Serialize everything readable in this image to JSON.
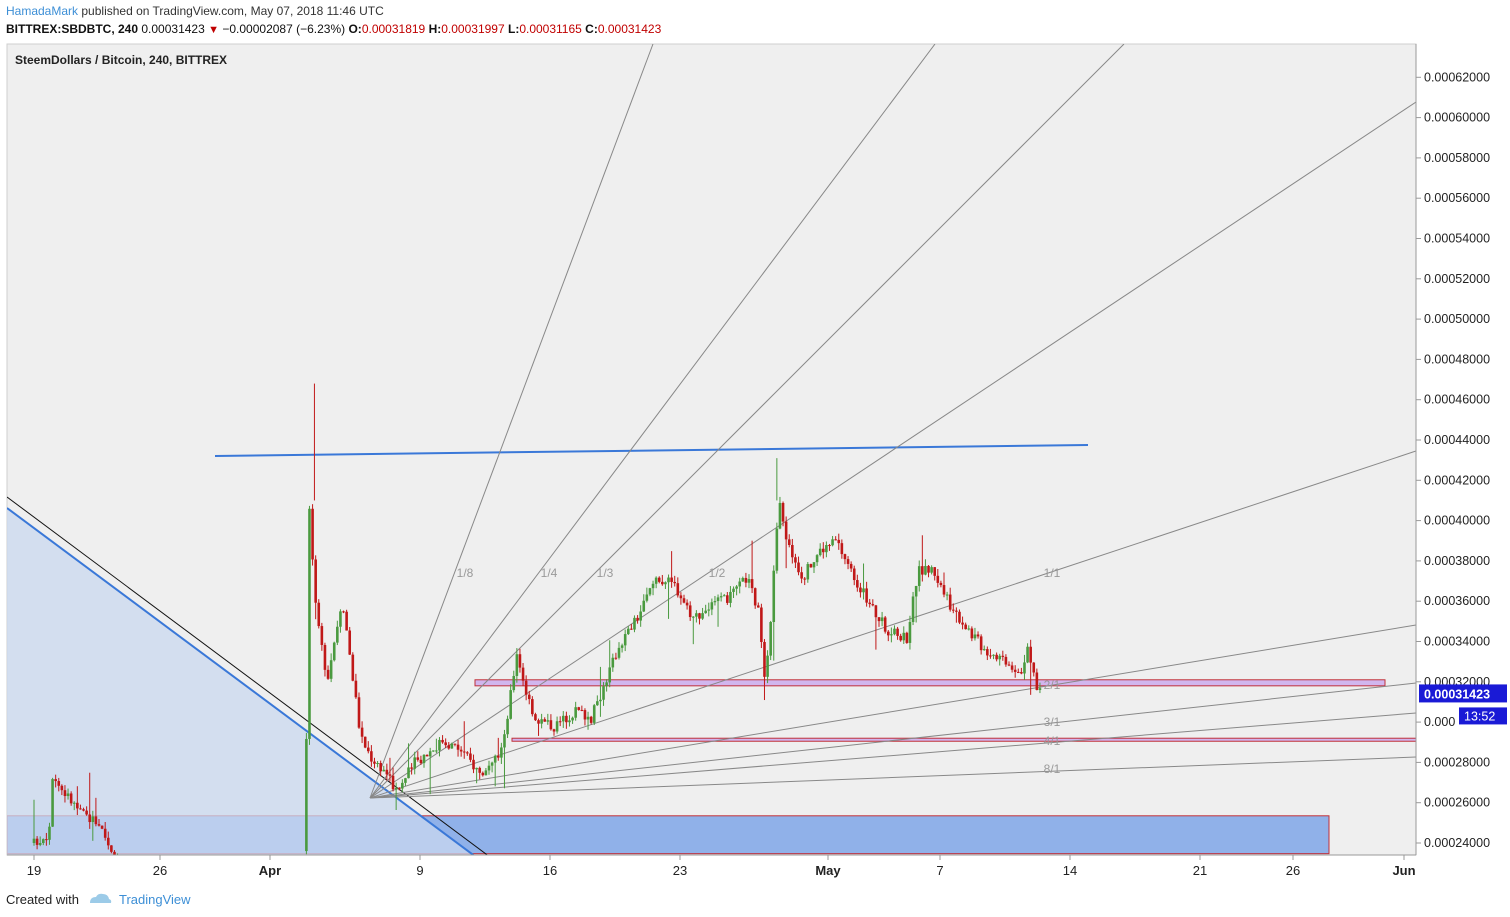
{
  "header": {
    "author": "HamadaMark",
    "published_text": "published on TradingView.com, May 07, 2018 11:46 UTC",
    "symbol": "BITTREX:SBDBTC, 240",
    "last": "0.00031423",
    "change": "−0.00002087 (−6.23%)",
    "o_label": "O:",
    "o": "0.00031819",
    "h_label": "H:",
    "h": "0.00031997",
    "l_label": "L:",
    "l": "0.00031165",
    "c_label": "C:",
    "c": "0.00031423"
  },
  "chart_title": "SteemDollars / Bitcoin, 240, BITTREX",
  "footer": {
    "created_with": "Created with",
    "brand": "TradingView"
  },
  "colors": {
    "up": "#4a9a3f",
    "down": "#c01818",
    "fan": "#888888",
    "trend": "#3a78d8",
    "zone": "#7fa6e8",
    "price_tag": "#1a1ad6"
  },
  "chart_data": {
    "type": "candlestick",
    "title": "SteemDollars / Bitcoin, 240, BITTREX",
    "x_ticks": [
      "19",
      "26",
      "Apr",
      "9",
      "16",
      "23",
      "May",
      "7",
      "14",
      "21",
      "26",
      "Jun"
    ],
    "y_ticks": [
      "0.00024000",
      "0.00026000",
      "0.00028000",
      "0.00030000",
      "0.00032000",
      "0.00034000",
      "0.00036000",
      "0.00038000",
      "0.00040000",
      "0.00042000",
      "0.00044000",
      "0.00046000",
      "0.00048000",
      "0.00050000",
      "0.00052000",
      "0.00054000",
      "0.00056000",
      "0.00058000",
      "0.00060000",
      "0.00062000"
    ],
    "ylim": [
      0.0002347,
      0.00063
    ],
    "last_price": "0.00031423",
    "countdown": "13:52",
    "partial_tick_label": "0.000",
    "gann_fan_labels": [
      "1/8",
      "1/4",
      "1/3",
      "1/2",
      "1/1",
      "2/1",
      "3/1",
      "4/1",
      "8/1"
    ],
    "highlight_zones": [
      [
        0.000318,
        0.000321
      ],
      [
        0.0002905,
        0.000292
      ]
    ],
    "demand_zone": [
      0.0002347,
      0.0002535
    ],
    "key_levels": {
      "high_spike": 0.000468,
      "apr25_high": 0.000431
    }
  }
}
